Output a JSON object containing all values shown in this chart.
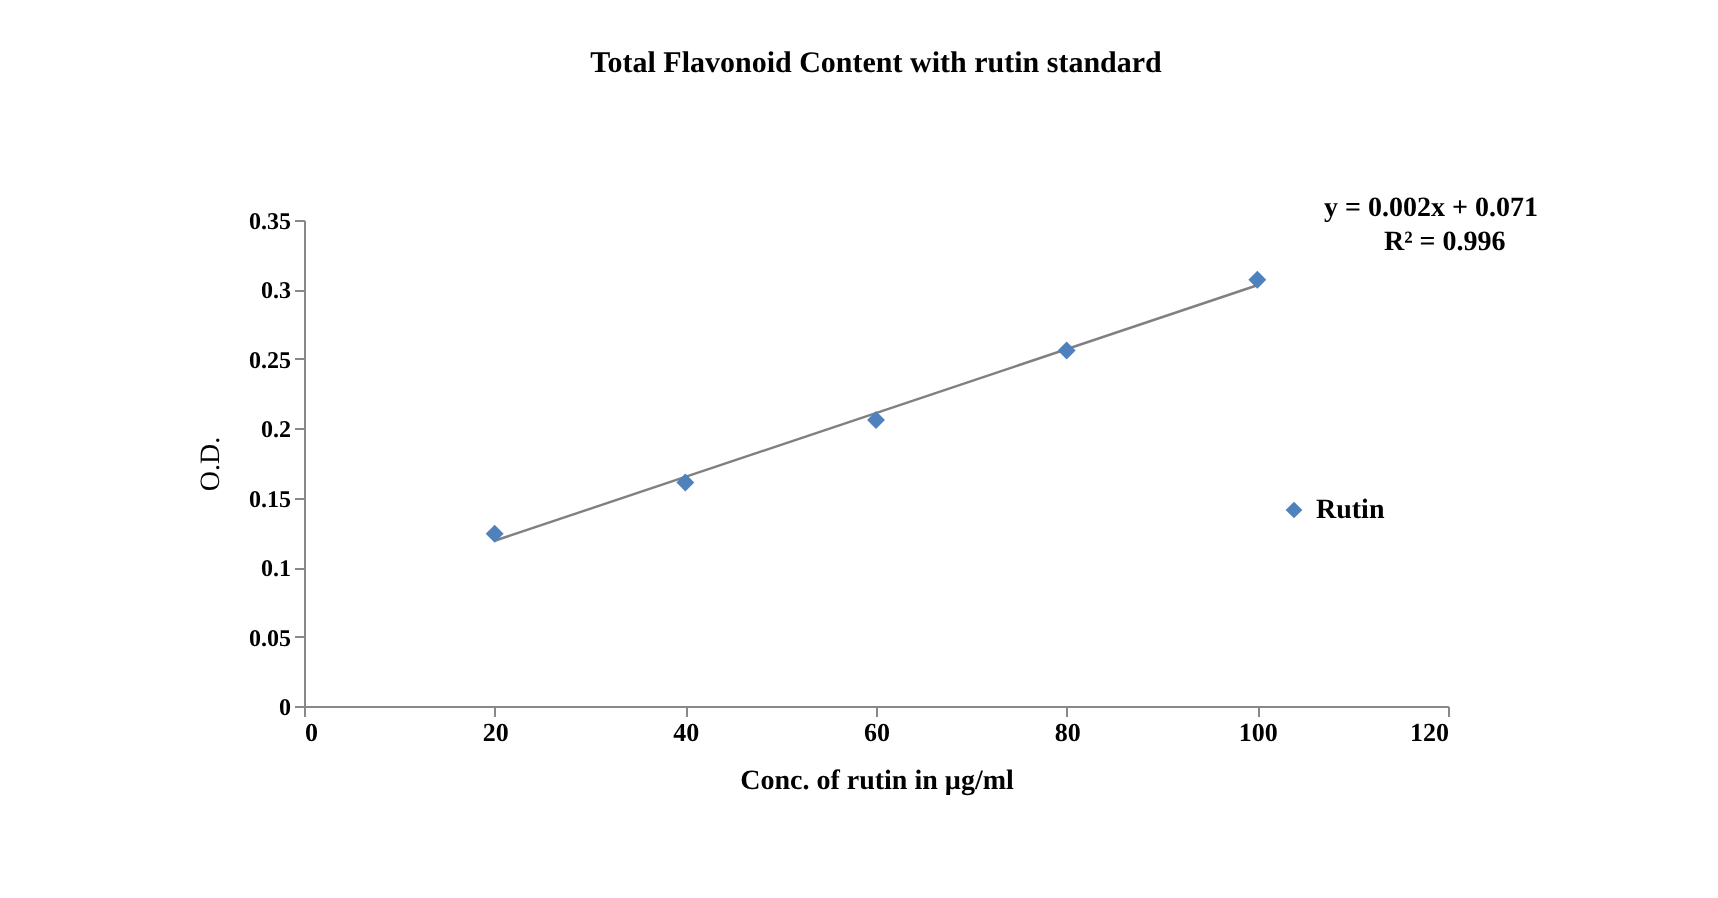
{
  "chart_data": {
    "type": "scatter",
    "title": "Total Flavonoid Content with rutin standard",
    "xlabel": "Conc. of rutin in µg/ml",
    "ylabel": "O.D.",
    "series": [
      {
        "name": "Rutin",
        "marker": "diamond",
        "color": "#4f81bd",
        "x": [
          20,
          40,
          60,
          80,
          100
        ],
        "values": [
          0.124,
          0.161,
          0.206,
          0.256,
          0.307
        ]
      },
      {
        "type": "line",
        "marker": "none",
        "color": "#808080",
        "x": [
          20,
          100
        ],
        "values": [
          0.119,
          0.303
        ]
      }
    ],
    "annotations": [
      "y = 0.002x + 0.071",
      "R² = 0.996"
    ],
    "xlim": [
      0,
      120
    ],
    "xticks": [
      0,
      20,
      40,
      60,
      80,
      100,
      120
    ],
    "ylim": [
      0,
      0.35
    ],
    "yticks": [
      0,
      0.05,
      0.1,
      0.15,
      0.2,
      0.25,
      0.3,
      0.35
    ],
    "grid": false,
    "legend": "right"
  }
}
